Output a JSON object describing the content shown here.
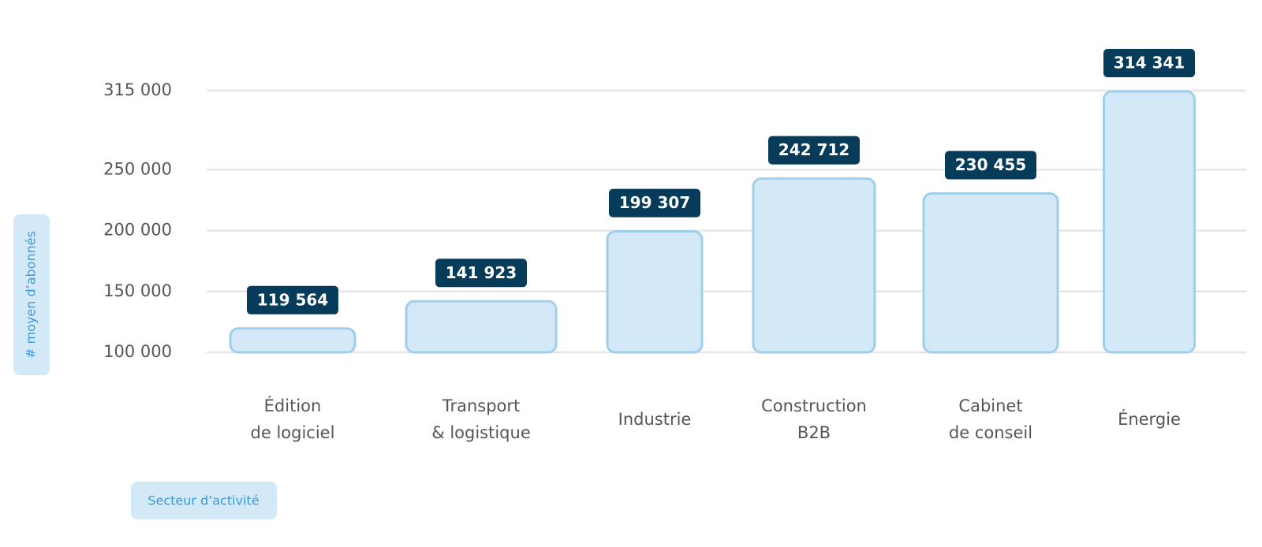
{
  "chart_data": {
    "type": "bar",
    "y_label": "# moyen d’abonnés",
    "x_label": "Secteur d’activité",
    "categories": [
      [
        "Édition",
        "de logiciel"
      ],
      [
        "Transport",
        "& logistique"
      ],
      [
        "Industrie"
      ],
      [
        "Construction",
        "B2B"
      ],
      [
        "Cabinet",
        "de conseil"
      ],
      [
        "Énergie"
      ]
    ],
    "values": [
      119564,
      141923,
      199307,
      242712,
      230455,
      314341
    ],
    "value_labels": [
      "119 564",
      "141 923",
      "199 307",
      "242 712",
      "230 455",
      "314 341"
    ],
    "color": "#d4e9f7",
    "ylim": [
      100000,
      315000
    ],
    "yticks": [
      {
        "value": 100000,
        "label": "100 000"
      },
      {
        "value": 150000,
        "label": "150 000"
      },
      {
        "value": 200000,
        "label": "200 000"
      },
      {
        "value": 250000,
        "label": "250 000"
      },
      {
        "value": 315000,
        "label": "315 000"
      }
    ],
    "grid": true
  }
}
